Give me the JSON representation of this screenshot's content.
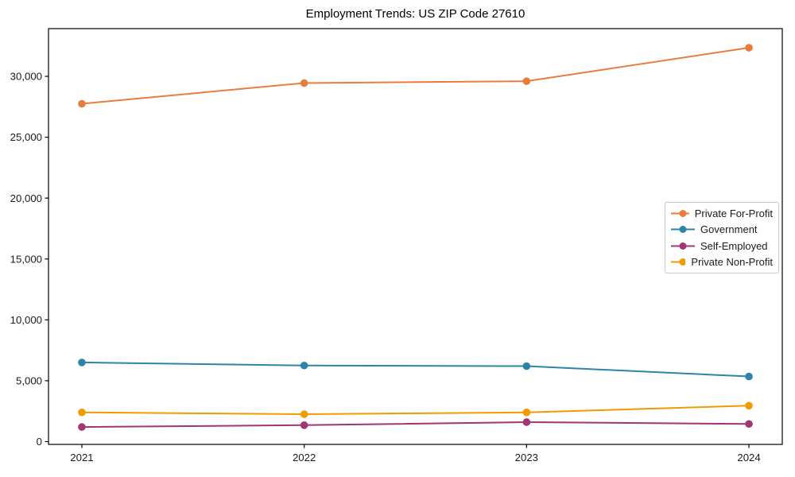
{
  "title": "Employment Trends: US ZIP Code 27610",
  "chart_data": {
    "type": "line",
    "title": "Employment Trends: US ZIP Code 27610",
    "xlabel": "",
    "ylabel": "",
    "x": [
      2021,
      2022,
      2023,
      2024
    ],
    "series": [
      {
        "name": "Private For-Profit",
        "color": "#E87D3B",
        "values": [
          27750,
          29450,
          29600,
          32350
        ]
      },
      {
        "name": "Government",
        "color": "#2C85A8",
        "values": [
          6500,
          6250,
          6200,
          5350
        ]
      },
      {
        "name": "Self-Employed",
        "color": "#A03577",
        "values": [
          1200,
          1350,
          1600,
          1450
        ]
      },
      {
        "name": "Private Non-Profit",
        "color": "#F09B00",
        "values": [
          2400,
          2250,
          2400,
          2950
        ]
      }
    ],
    "xticks": [
      "2021",
      "2022",
      "2023",
      "2024"
    ],
    "yticks": [
      0,
      5000,
      10000,
      15000,
      20000,
      25000,
      30000
    ],
    "ytick_labels": [
      "0",
      "5,000",
      "10,000",
      "15,000",
      "20,000",
      "25,000",
      "30,000"
    ],
    "xlim": [
      2020.85,
      2024.15
    ],
    "ylim": [
      -230,
      33920
    ],
    "grid": false,
    "legend_position": "center right",
    "marker": "circle",
    "axis_color": "#000000",
    "background_color": "#ffffff"
  }
}
